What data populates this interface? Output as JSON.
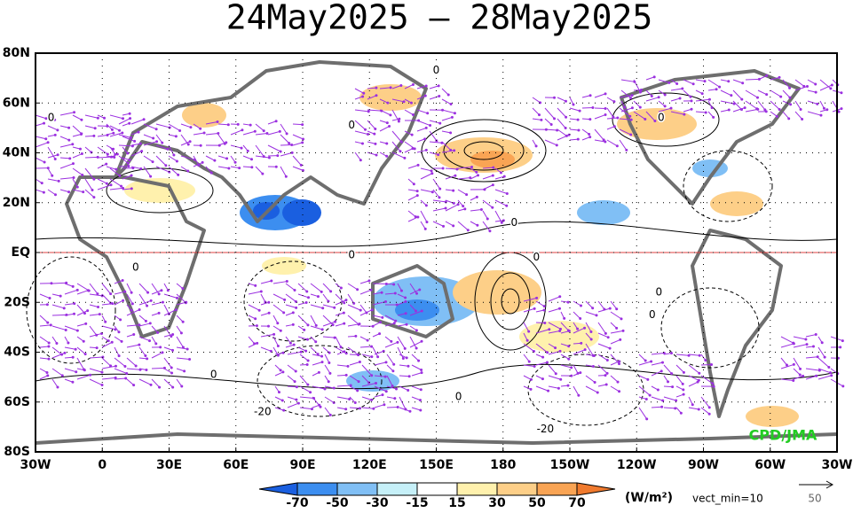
{
  "header": {
    "title": "24May2025 – 28May2025"
  },
  "lat_labels": [
    "80N",
    "60N",
    "40N",
    "20N",
    "EQ",
    "20S",
    "40S",
    "60S",
    "80S"
  ],
  "lon_labels": [
    "30W",
    "0",
    "30E",
    "60E",
    "90E",
    "120E",
    "150E",
    "180",
    "150W",
    "120W",
    "90W",
    "60W",
    "30W"
  ],
  "contour_labels": [
    {
      "text": "0",
      "lon": 150,
      "lat": 73
    },
    {
      "text": "0",
      "lon": -23,
      "lat": 54
    },
    {
      "text": "0",
      "lon": 112,
      "lat": 51
    },
    {
      "text": "0",
      "lon": 185,
      "lat": 12
    },
    {
      "text": "0",
      "lon": 251,
      "lat": 54
    },
    {
      "text": "0",
      "lon": 15,
      "lat": -6
    },
    {
      "text": "0",
      "lon": 112,
      "lat": -1
    },
    {
      "text": "0",
      "lon": 195,
      "lat": -2
    },
    {
      "text": "0",
      "lon": 250,
      "lat": -16
    },
    {
      "text": "0",
      "lon": 247,
      "lat": -25
    },
    {
      "text": "0",
      "lon": 50,
      "lat": -49
    },
    {
      "text": "0",
      "lon": 160,
      "lat": -58
    },
    {
      "text": "-20",
      "lon": 72,
      "lat": -64
    },
    {
      "text": "-20",
      "lon": 199,
      "lat": -71
    }
  ],
  "credit": "CPD/JMA",
  "colorbar": {
    "ticks": [
      -70,
      -50,
      -30,
      -15,
      15,
      30,
      50,
      70
    ],
    "units": "(W/m²)",
    "colors": [
      "#1a5fe0",
      "#3c8ef0",
      "#80bff5",
      "#c6f0f8",
      "#ffffff",
      "#fff1ad",
      "#fdcf88",
      "#f9a454",
      "#f07a2e"
    ]
  },
  "vector_note": "vect_min=10",
  "vector_scale": "50"
}
